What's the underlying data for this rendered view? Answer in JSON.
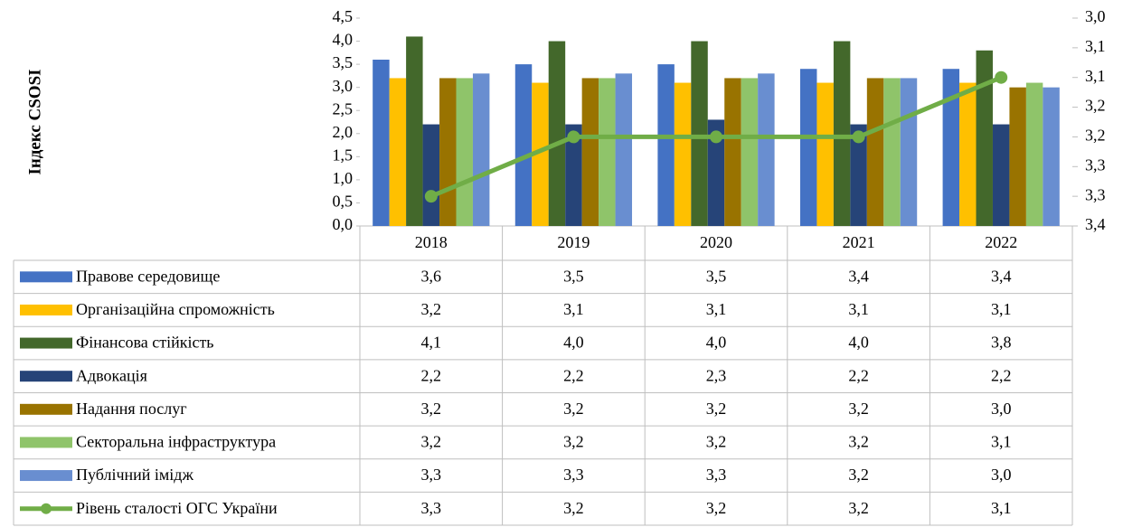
{
  "chart_data": {
    "type": "bar",
    "y_axis_label": "Індекс CSOSI",
    "categories": [
      "2018",
      "2019",
      "2020",
      "2021",
      "2022"
    ],
    "ylim": [
      0,
      4.5
    ],
    "yticks": [
      {
        "value": 0,
        "label": "0,0"
      },
      {
        "value": 0.5,
        "label": "0,5"
      },
      {
        "value": 1,
        "label": "1,0"
      },
      {
        "value": 1.5,
        "label": "1,5"
      },
      {
        "value": 2,
        "label": "2,0"
      },
      {
        "value": 2.5,
        "label": "2,5"
      },
      {
        "value": 3,
        "label": "3,0"
      },
      {
        "value": 3.5,
        "label": "3,5"
      },
      {
        "value": 4,
        "label": "4,0"
      },
      {
        "value": 4.5,
        "label": "4,5"
      }
    ],
    "y2lim": [
      3.0,
      3.35
    ],
    "y2_reversed": true,
    "y2ticks": [
      {
        "value": 3.0,
        "label": "3,0"
      },
      {
        "value": 3.05,
        "label": "3,1"
      },
      {
        "value": 3.1,
        "label": "3,1"
      },
      {
        "value": 3.15,
        "label": "3,2"
      },
      {
        "value": 3.2,
        "label": "3,2"
      },
      {
        "value": 3.25,
        "label": "3,3"
      },
      {
        "value": 3.3,
        "label": "3,3"
      },
      {
        "value": 3.35,
        "label": "3,4"
      }
    ],
    "data_table": true,
    "series": [
      {
        "name": "Правове середовище",
        "type": "bar",
        "color": "#4472c4",
        "values": [
          3.6,
          3.5,
          3.5,
          3.4,
          3.4
        ],
        "value_labels": [
          "3,6",
          "3,5",
          "3,5",
          "3,4",
          "3,4"
        ]
      },
      {
        "name": "Організаційна спроможність",
        "type": "bar",
        "color": "#ffc000",
        "values": [
          3.2,
          3.1,
          3.1,
          3.1,
          3.1
        ],
        "value_labels": [
          "3,2",
          "3,1",
          "3,1",
          "3,1",
          "3,1"
        ]
      },
      {
        "name": "Фінансова стійкість",
        "type": "bar",
        "color": "#43682b",
        "values": [
          4.1,
          4.0,
          4.0,
          4.0,
          3.8
        ],
        "value_labels": [
          "4,1",
          "4,0",
          "4,0",
          "4,0",
          "3,8"
        ]
      },
      {
        "name": "Адвокація",
        "type": "bar",
        "color": "#264478",
        "values": [
          2.2,
          2.2,
          2.3,
          2.2,
          2.2
        ],
        "value_labels": [
          "2,2",
          "2,2",
          "2,3",
          "2,2",
          "2,2"
        ]
      },
      {
        "name": "Надання послуг",
        "type": "bar",
        "color": "#997300",
        "values": [
          3.2,
          3.2,
          3.2,
          3.2,
          3.0
        ],
        "value_labels": [
          "3,2",
          "3,2",
          "3,2",
          "3,2",
          "3,0"
        ]
      },
      {
        "name": "Секторальна інфраструктура",
        "type": "bar",
        "color": "#8fc46a",
        "values": [
          3.2,
          3.2,
          3.2,
          3.2,
          3.1
        ],
        "value_labels": [
          "3,2",
          "3,2",
          "3,2",
          "3,2",
          "3,1"
        ]
      },
      {
        "name": "Публічний імідж",
        "type": "bar",
        "color": "#698ed0",
        "values": [
          3.3,
          3.3,
          3.3,
          3.2,
          3.0
        ],
        "value_labels": [
          "3,3",
          "3,3",
          "3,3",
          "3,2",
          "3,0"
        ]
      },
      {
        "name": "Рівень сталості ОГС України",
        "type": "line",
        "axis": "y2",
        "color": "#70ad47",
        "values": [
          3.3,
          3.2,
          3.2,
          3.2,
          3.1
        ],
        "value_labels": [
          "3,3",
          "3,2",
          "3,2",
          "3,2",
          "3,1"
        ]
      }
    ]
  }
}
